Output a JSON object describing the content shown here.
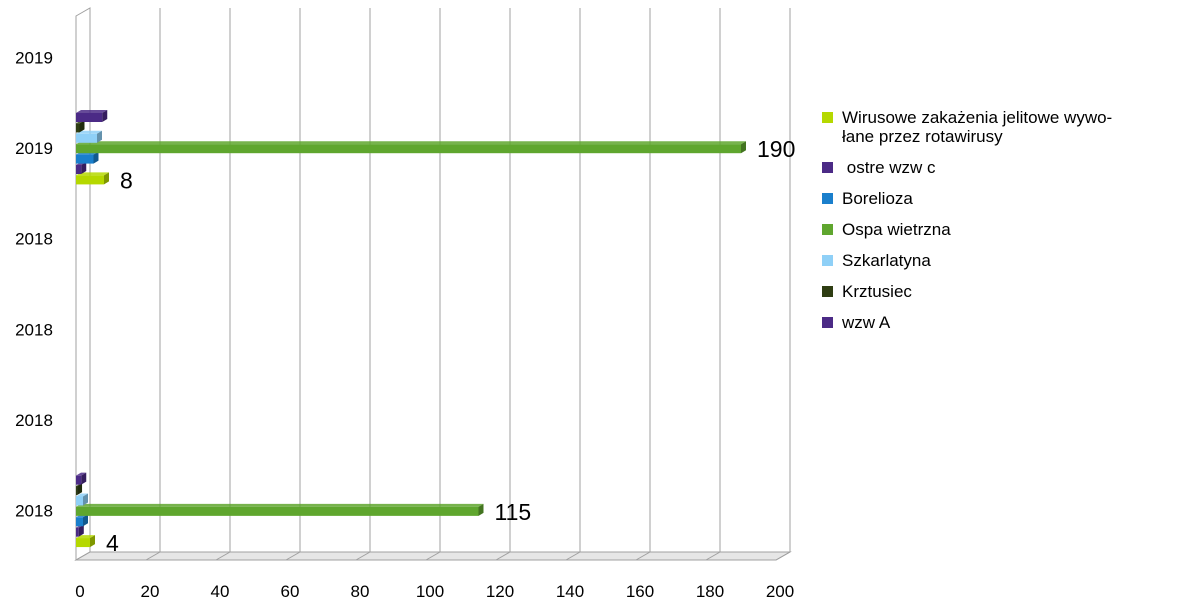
{
  "chart_data": {
    "type": "bar",
    "orientation": "horizontal",
    "style": "3d",
    "xlim": [
      0,
      200
    ],
    "x_ticks": [
      "0",
      "20",
      "40",
      "60",
      "80",
      "100",
      "120",
      "140",
      "160",
      "180",
      "200"
    ],
    "categories": [
      "2018",
      "2018",
      "2018",
      "2018",
      "2019",
      "2019"
    ],
    "grid": true,
    "legend_position": "right",
    "series": [
      {
        "name": "Wirusowe zakażenia jelitowe wywo-\nłane przez rotawirusy",
        "color": "#b5d800",
        "values": [
          4,
          null,
          null,
          null,
          8,
          null
        ],
        "labels": [
          "4",
          null,
          null,
          null,
          "8",
          null
        ]
      },
      {
        "name": " ostre wzw c",
        "color": "#4b2a86",
        "values": [
          0.8,
          null,
          null,
          null,
          1.5,
          null
        ],
        "labels": [
          null,
          null,
          null,
          null,
          null,
          null
        ]
      },
      {
        "name": "Borelioza",
        "color": "#1a7fcc",
        "values": [
          2,
          null,
          null,
          null,
          5,
          null
        ],
        "labels": [
          null,
          null,
          null,
          null,
          null,
          null
        ]
      },
      {
        "name": "Ospa wietrzna",
        "color": "#5fa62e",
        "values": [
          115,
          null,
          null,
          null,
          190,
          null
        ],
        "labels": [
          "115",
          null,
          null,
          null,
          "190",
          null
        ]
      },
      {
        "name": "Szkarlatyna",
        "color": "#8fd0f7",
        "values": [
          2,
          null,
          null,
          null,
          6,
          null
        ],
        "labels": [
          null,
          null,
          null,
          null,
          null,
          null
        ]
      },
      {
        "name": "Krztusiec",
        "color": "#2e3d12",
        "values": [
          0.3,
          null,
          null,
          null,
          1,
          null
        ],
        "labels": [
          null,
          null,
          null,
          null,
          null,
          null
        ]
      },
      {
        "name": "wzw A",
        "color": "#4b2a86",
        "values": [
          1.5,
          null,
          null,
          null,
          7.5,
          null
        ],
        "labels": [
          null,
          null,
          null,
          null,
          null,
          null
        ]
      }
    ]
  }
}
